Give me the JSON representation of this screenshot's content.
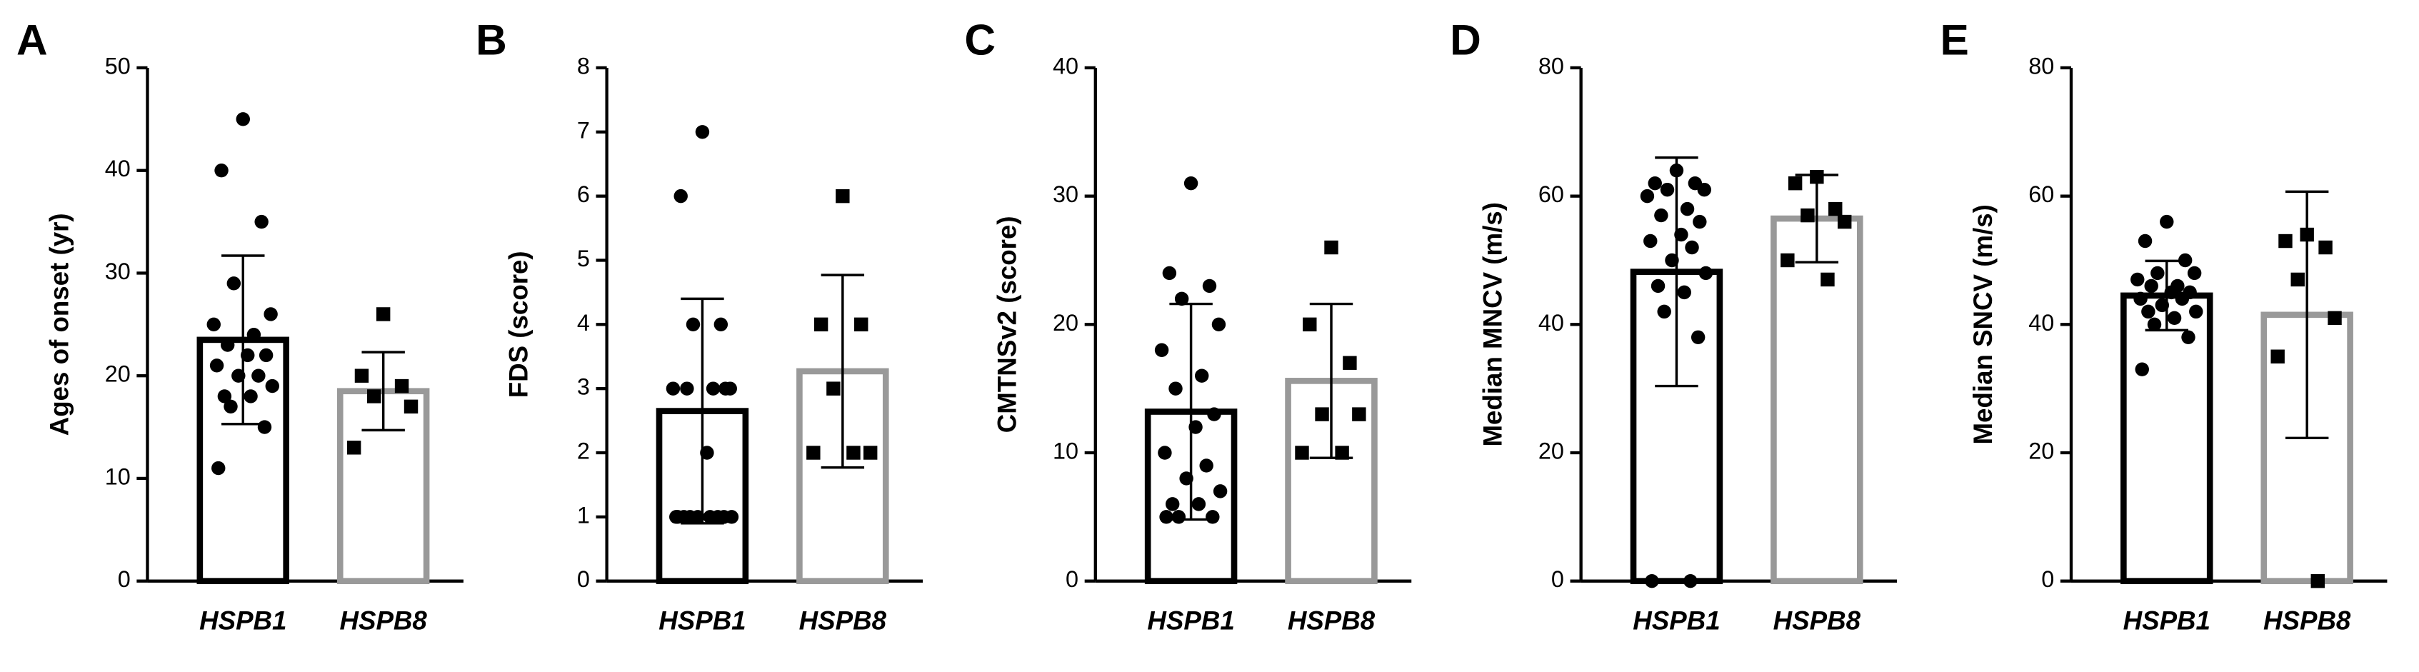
{
  "chart_data": [
    {
      "type": "bar",
      "panel": "A",
      "ylabel": "Ages of onset (yr)",
      "categories": [
        "HSPB1",
        "HSPB8"
      ],
      "values": [
        23.5,
        18.5
      ],
      "errors": [
        8.2,
        3.8
      ],
      "points": [
        [
          45,
          40,
          35,
          29,
          26,
          25,
          24,
          23,
          22,
          22,
          21,
          20,
          20,
          19,
          18,
          18,
          17,
          15,
          11
        ],
        [
          26,
          20,
          19,
          18,
          17,
          13
        ]
      ],
      "colors": [
        "#000000",
        "#999999"
      ],
      "markers": [
        "circle",
        "square"
      ],
      "ylim": [
        0,
        50
      ],
      "yticks": [
        0,
        10,
        20,
        30,
        40,
        50
      ]
    },
    {
      "type": "bar",
      "panel": "B",
      "ylabel": "FDS (score)",
      "categories": [
        "HSPB1",
        "HSPB8"
      ],
      "values": [
        2.65,
        3.27
      ],
      "errors": [
        1.75,
        1.5
      ],
      "points": [
        [
          7,
          6,
          4,
          4,
          3,
          3,
          3,
          3,
          3,
          2,
          1,
          1,
          1,
          1,
          1,
          1,
          1,
          1,
          1
        ],
        [
          6,
          4,
          4,
          3,
          2,
          2,
          2
        ]
      ],
      "colors": [
        "#000000",
        "#999999"
      ],
      "markers": [
        "circle",
        "square"
      ],
      "ylim": [
        0,
        8
      ],
      "yticks": [
        0,
        1,
        2,
        3,
        4,
        5,
        6,
        7,
        8
      ]
    },
    {
      "type": "bar",
      "panel": "C",
      "ylabel": "CMTNSv2 (score)",
      "categories": [
        "HSPB1",
        "HSPB8"
      ],
      "values": [
        13.2,
        15.6
      ],
      "errors": [
        8.4,
        6.0
      ],
      "points": [
        [
          31,
          24,
          23,
          22,
          20,
          18,
          16,
          15,
          13,
          12,
          10,
          9,
          8,
          7,
          6,
          6,
          5,
          5,
          5
        ],
        [
          26,
          20,
          17,
          13,
          13,
          10,
          10
        ]
      ],
      "colors": [
        "#000000",
        "#999999"
      ],
      "markers": [
        "circle",
        "square"
      ],
      "ylim": [
        0,
        40
      ],
      "yticks": [
        0,
        10,
        20,
        30,
        40
      ]
    },
    {
      "type": "bar",
      "panel": "D",
      "ylabel": "Median MNCV (m/s)",
      "categories": [
        "HSPB1",
        "HSPB8"
      ],
      "values": [
        48.2,
        56.5
      ],
      "errors": [
        17.8,
        6.8
      ],
      "points": [
        [
          64,
          62,
          62,
          61,
          61,
          60,
          58,
          57,
          56,
          54,
          53,
          52,
          50,
          48,
          46,
          45,
          42,
          38,
          0,
          0
        ],
        [
          63,
          62,
          58,
          57,
          56,
          50,
          47
        ]
      ],
      "colors": [
        "#000000",
        "#999999"
      ],
      "markers": [
        "circle",
        "square"
      ],
      "ylim": [
        0,
        80
      ],
      "yticks": [
        0,
        20,
        40,
        60,
        80
      ]
    },
    {
      "type": "bar",
      "panel": "E",
      "ylabel": "Median SNCV (m/s)",
      "categories": [
        "HSPB1",
        "HSPB8"
      ],
      "values": [
        44.5,
        41.5
      ],
      "errors": [
        5.4,
        19.2
      ],
      "points": [
        [
          56,
          53,
          50,
          48,
          48,
          47,
          46,
          46,
          45,
          45,
          44,
          44,
          43,
          42,
          42,
          41,
          40,
          38,
          33
        ],
        [
          54,
          53,
          52,
          47,
          41,
          35,
          0
        ]
      ],
      "colors": [
        "#000000",
        "#999999"
      ],
      "markers": [
        "circle",
        "square"
      ],
      "ylim": [
        0,
        80
      ],
      "yticks": [
        0,
        20,
        40,
        60,
        80
      ]
    }
  ]
}
